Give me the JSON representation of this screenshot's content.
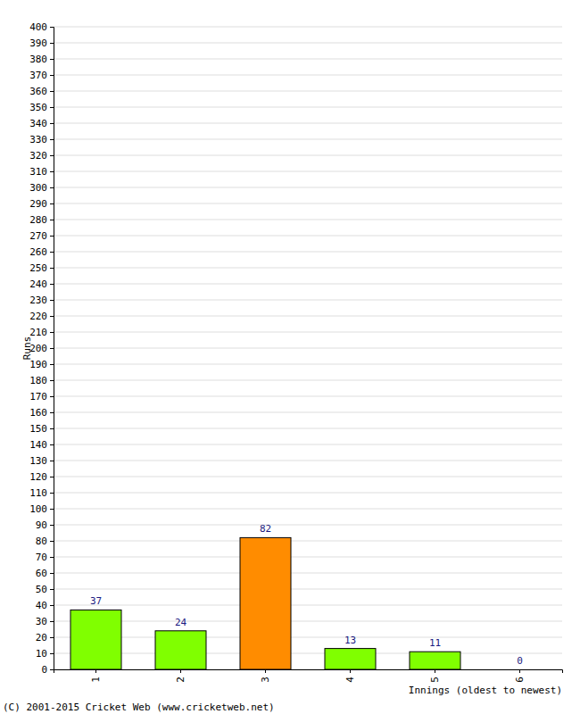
{
  "chart_data": {
    "type": "bar",
    "y_label": "Runs",
    "x_label": "Innings (oldest to newest)",
    "annotations": [
      "(C) 2001-2015 Cricket Web (www.cricketweb.net)"
    ],
    "categories": [
      "1",
      "2",
      "3",
      "4",
      "5",
      "6"
    ],
    "values": [
      37,
      24,
      82,
      13,
      11,
      0
    ],
    "colors": [
      "#80ff00",
      "#80ff00",
      "#ff8c00",
      "#80ff00",
      "#80ff00",
      "#80ff00"
    ],
    "ylim": [
      0,
      400
    ],
    "yticks": [
      0,
      10,
      20,
      30,
      40,
      50,
      60,
      70,
      80,
      90,
      100,
      110,
      120,
      130,
      140,
      150,
      160,
      170,
      180,
      190,
      200,
      210,
      220,
      230,
      240,
      250,
      260,
      270,
      280,
      290,
      300,
      310,
      320,
      330,
      340,
      350,
      360,
      370,
      380,
      390,
      400
    ],
    "grid": true,
    "data_labels": true
  }
}
